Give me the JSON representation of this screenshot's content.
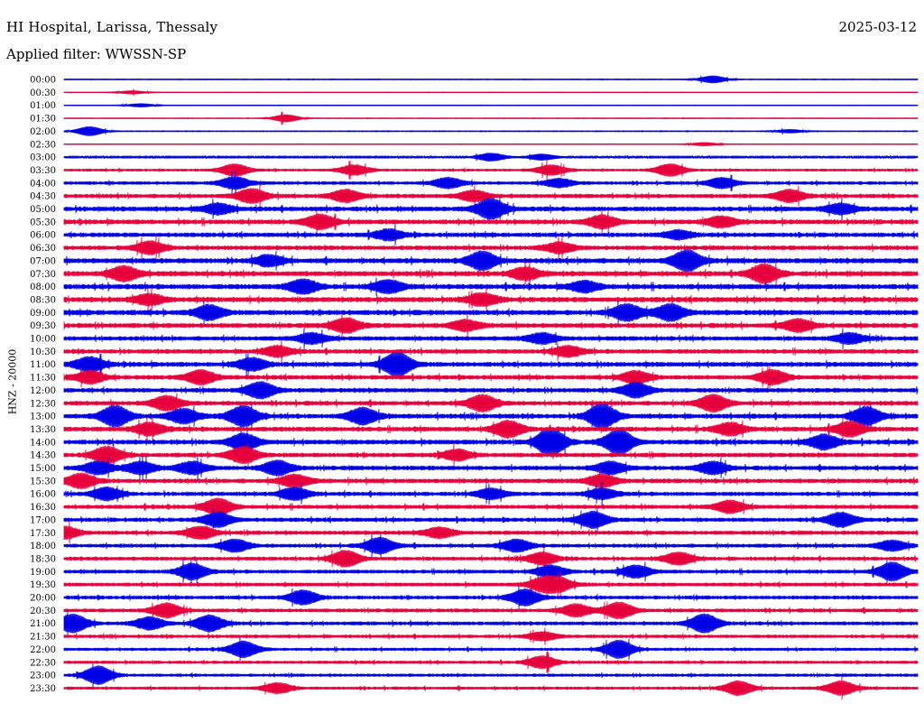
{
  "header": {
    "station": "HI Hospital, Larissa, Thessaly",
    "date": "2025-03-12",
    "filter": "Applied filter: WWSSN-SP"
  },
  "chart_data": {
    "type": "line",
    "title": "HI Hospital, Larissa, Thessaly",
    "subtitle": "Applied filter: WWSSN-SP",
    "date": "2025-03-12",
    "ylabel": "HNZ - 20000",
    "row_labels": [
      "00:00",
      "00:30",
      "01:00",
      "01:30",
      "02:00",
      "02:30",
      "03:00",
      "03:30",
      "04:00",
      "04:30",
      "05:00",
      "05:30",
      "06:00",
      "06:30",
      "07:00",
      "07:30",
      "08:00",
      "08:30",
      "09:00",
      "09:30",
      "10:00",
      "10:30",
      "11:00",
      "11:30",
      "12:00",
      "12:30",
      "13:00",
      "13:30",
      "14:00",
      "14:30",
      "15:00",
      "15:30",
      "16:00",
      "16:30",
      "17:00",
      "17:30",
      "18:00",
      "18:30",
      "19:00",
      "19:30",
      "20:00",
      "20:30",
      "21:00",
      "21:30",
      "22:00",
      "22:30",
      "23:00",
      "23:30"
    ],
    "colors": {
      "even_rows": "#0000e6",
      "odd_rows": "#e6003c"
    },
    "grid": false,
    "noise_level": [
      0.3,
      0.2,
      0.25,
      0.3,
      0.4,
      0.2,
      1.0,
      1.6,
      2.0,
      2.4,
      2.8,
      2.8,
      2.6,
      2.6,
      3.0,
      3.0,
      3.0,
      3.0,
      3.0,
      2.8,
      2.6,
      2.6,
      2.8,
      2.6,
      2.6,
      2.6,
      2.8,
      2.8,
      2.8,
      2.6,
      2.6,
      2.6,
      2.4,
      2.4,
      2.4,
      2.4,
      2.2,
      2.2,
      2.2,
      2.2,
      2.2,
      2.2,
      2.2,
      2.0,
      1.8,
      1.8,
      1.8,
      1.8
    ],
    "events": [
      [
        [
          0.76,
          4
        ]
      ],
      [
        [
          0.08,
          2
        ]
      ],
      [
        [
          0.09,
          2
        ]
      ],
      [
        [
          0.26,
          4
        ]
      ],
      [
        [
          0.03,
          5
        ],
        [
          0.85,
          2
        ]
      ],
      [
        [
          0.75,
          2
        ]
      ],
      [
        [
          0.5,
          4
        ],
        [
          0.56,
          3
        ]
      ],
      [
        [
          0.2,
          6
        ],
        [
          0.34,
          5
        ],
        [
          0.57,
          5
        ],
        [
          0.71,
          6
        ]
      ],
      [
        [
          0.2,
          6
        ],
        [
          0.45,
          5
        ],
        [
          0.58,
          4
        ],
        [
          0.77,
          5
        ]
      ],
      [
        [
          0.22,
          7
        ],
        [
          0.33,
          6
        ],
        [
          0.48,
          5
        ],
        [
          0.85,
          6
        ]
      ],
      [
        [
          0.5,
          10
        ],
        [
          0.18,
          5
        ],
        [
          0.91,
          5
        ]
      ],
      [
        [
          0.3,
          7
        ],
        [
          0.63,
          6
        ],
        [
          0.77,
          5
        ]
      ],
      [
        [
          0.38,
          5
        ],
        [
          0.72,
          4
        ]
      ],
      [
        [
          0.1,
          6
        ],
        [
          0.58,
          5
        ]
      ],
      [
        [
          0.49,
          9
        ],
        [
          0.73,
          10
        ],
        [
          0.24,
          5
        ]
      ],
      [
        [
          0.07,
          7
        ],
        [
          0.54,
          6
        ],
        [
          0.82,
          9
        ]
      ],
      [
        [
          0.28,
          7
        ],
        [
          0.38,
          6
        ],
        [
          0.61,
          5
        ]
      ],
      [
        [
          0.1,
          5
        ],
        [
          0.49,
          6
        ]
      ],
      [
        [
          0.17,
          7
        ],
        [
          0.66,
          8
        ],
        [
          0.71,
          8
        ]
      ],
      [
        [
          0.33,
          7
        ],
        [
          0.47,
          5
        ],
        [
          0.86,
          6
        ]
      ],
      [
        [
          0.29,
          5
        ],
        [
          0.56,
          5
        ],
        [
          0.92,
          5
        ]
      ],
      [
        [
          0.25,
          5
        ],
        [
          0.59,
          5
        ]
      ],
      [
        [
          0.39,
          12
        ],
        [
          0.03,
          7
        ],
        [
          0.22,
          6
        ]
      ],
      [
        [
          0.03,
          6
        ],
        [
          0.16,
          7
        ],
        [
          0.67,
          6
        ],
        [
          0.83,
          7
        ]
      ],
      [
        [
          0.23,
          8
        ],
        [
          0.67,
          7
        ]
      ],
      [
        [
          0.12,
          7
        ],
        [
          0.49,
          8
        ],
        [
          0.76,
          8
        ]
      ],
      [
        [
          0.06,
          10
        ],
        [
          0.14,
          7
        ],
        [
          0.21,
          10
        ],
        [
          0.35,
          8
        ],
        [
          0.63,
          12
        ],
        [
          0.94,
          9
        ]
      ],
      [
        [
          0.1,
          6
        ],
        [
          0.52,
          8
        ],
        [
          0.78,
          6
        ],
        [
          0.92,
          7
        ]
      ],
      [
        [
          0.21,
          8
        ],
        [
          0.57,
          14
        ],
        [
          0.65,
          12
        ],
        [
          0.89,
          7
        ]
      ],
      [
        [
          0.05,
          8
        ],
        [
          0.21,
          8
        ],
        [
          0.46,
          5
        ]
      ],
      [
        [
          0.04,
          6
        ],
        [
          0.09,
          6
        ],
        [
          0.15,
          6
        ],
        [
          0.25,
          7
        ],
        [
          0.64,
          6
        ],
        [
          0.76,
          6
        ]
      ],
      [
        [
          0.02,
          7
        ],
        [
          0.63,
          6
        ],
        [
          0.27,
          6
        ]
      ],
      [
        [
          0.05,
          6
        ],
        [
          0.27,
          6
        ],
        [
          0.5,
          5
        ],
        [
          0.63,
          5
        ]
      ],
      [
        [
          0.18,
          8
        ],
        [
          0.78,
          6
        ]
      ],
      [
        [
          0.18,
          7
        ],
        [
          0.62,
          8
        ],
        [
          0.91,
          7
        ]
      ],
      [
        [
          0.0,
          6
        ],
        [
          0.16,
          6
        ],
        [
          0.44,
          5
        ]
      ],
      [
        [
          0.2,
          6
        ],
        [
          0.37,
          8
        ],
        [
          0.53,
          6
        ],
        [
          0.97,
          5
        ]
      ],
      [
        [
          0.33,
          8
        ],
        [
          0.56,
          6
        ],
        [
          0.72,
          6
        ]
      ],
      [
        [
          0.15,
          8
        ],
        [
          0.57,
          6
        ],
        [
          0.67,
          6
        ],
        [
          0.97,
          9
        ]
      ],
      [
        [
          0.56,
          6
        ],
        [
          0.58,
          6
        ]
      ],
      [
        [
          0.28,
          7
        ],
        [
          0.54,
          8
        ]
      ],
      [
        [
          0.12,
          7
        ],
        [
          0.6,
          6
        ],
        [
          0.65,
          8
        ]
      ],
      [
        [
          0.01,
          9
        ],
        [
          0.1,
          6
        ],
        [
          0.17,
          8
        ],
        [
          0.75,
          9
        ]
      ],
      [
        [
          0.56,
          4
        ]
      ],
      [
        [
          0.21,
          8
        ],
        [
          0.65,
          9
        ]
      ],
      [
        [
          0.56,
          6
        ]
      ],
      [
        [
          0.04,
          9
        ]
      ],
      [
        [
          0.25,
          5
        ],
        [
          0.79,
          7
        ],
        [
          0.91,
          7
        ]
      ]
    ]
  }
}
